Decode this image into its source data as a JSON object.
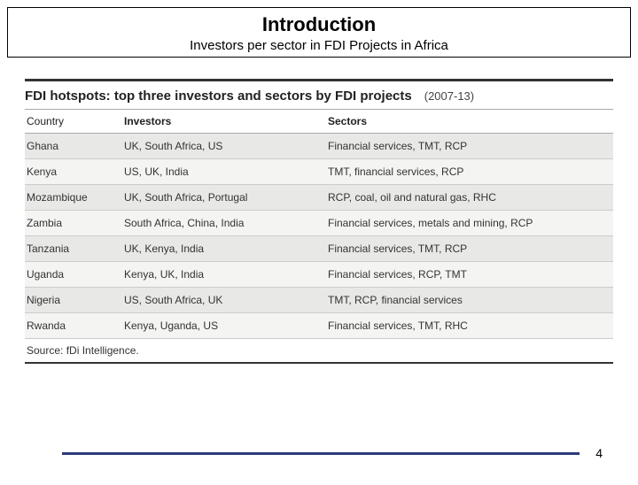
{
  "header": {
    "title": "Introduction",
    "subtitle": "Investors per sector in FDI Projects in Africa",
    "bar_color": "#1a2a6c"
  },
  "table": {
    "title": "FDI hotspots: top three investors and sectors by FDI projects",
    "years": "(2007-13)",
    "columns": [
      "Country",
      "Investors",
      "Sectors"
    ],
    "rows": [
      [
        "Ghana",
        "UK, South Africa, US",
        "Financial services, TMT, RCP"
      ],
      [
        "Kenya",
        "US, UK, India",
        "TMT, financial services, RCP"
      ],
      [
        "Mozambique",
        "UK, South Africa, Portugal",
        "RCP, coal, oil and natural gas, RHC"
      ],
      [
        "Zambia",
        "South Africa, China, India",
        "Financial services, metals and mining, RCP"
      ],
      [
        "Tanzania",
        "UK, Kenya, India",
        "Financial services, TMT, RCP"
      ],
      [
        "Uganda",
        "Kenya, UK, India",
        "Financial services, RCP, TMT"
      ],
      [
        "Nigeria",
        "US, South Africa, UK",
        "TMT, RCP, financial services"
      ],
      [
        "Rwanda",
        "Kenya, Uganda, US",
        "Financial services, TMT, RHC"
      ]
    ],
    "source": "Source: fDi Intelligence.",
    "header_bg": "#ffffff",
    "row_odd_bg": "#e8e8e6",
    "row_even_bg": "#f4f4f2",
    "border_color": "#333333"
  },
  "footer": {
    "page": "4",
    "line_color": "#2a3a7c"
  }
}
